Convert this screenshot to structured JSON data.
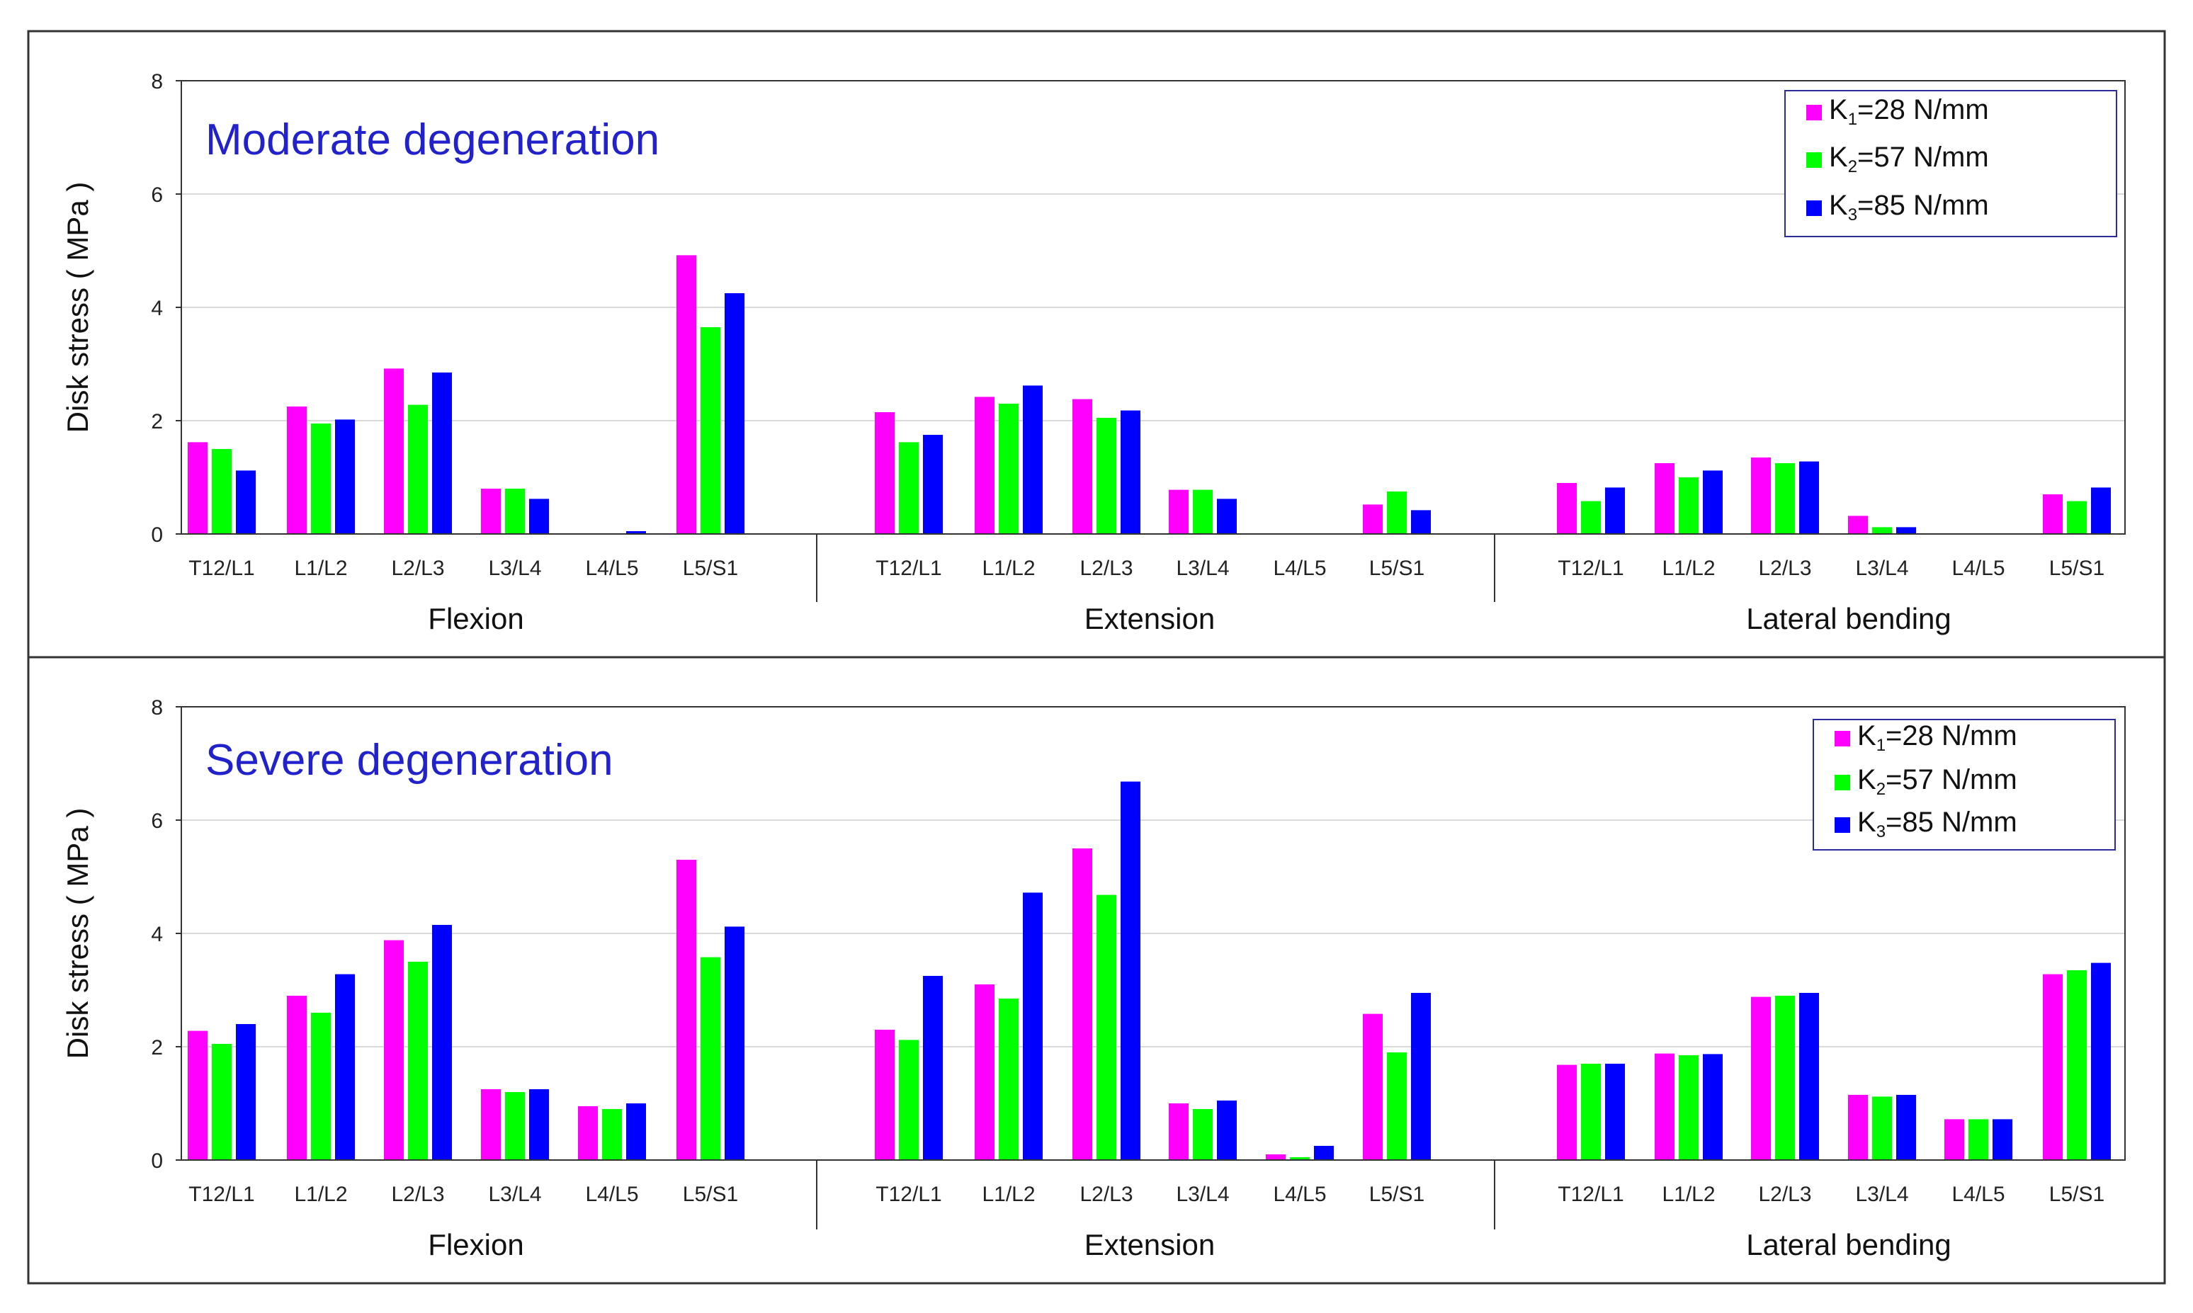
{
  "chart_data": [
    {
      "type": "bar",
      "title": "Moderate degeneration",
      "ylabel": "Disk stress ( MPa )",
      "ylim": [
        0,
        8
      ],
      "yticks": [
        "0",
        "2",
        "4",
        "6",
        "8"
      ],
      "groups": [
        "Flexion",
        "Extension",
        "Lateral bending"
      ],
      "categories": [
        "T12/L1",
        "L1/L2",
        "L2/L3",
        "L3/L4",
        "L4/L5",
        "L5/S1"
      ],
      "legend": {
        "position": "top-right",
        "entries": [
          {
            "base": "K",
            "sub": "1",
            "rest": "=28 N/mm"
          },
          {
            "base": "K",
            "sub": "2",
            "rest": "=57 N/mm"
          },
          {
            "base": "K",
            "sub": "3",
            "rest": "=85 N/mm"
          }
        ]
      },
      "series": [
        {
          "name": "K1=28 N/mm",
          "color": "#ff00ff",
          "values": [
            [
              1.62,
              2.25,
              2.92,
              0.8,
              0.0,
              4.92
            ],
            [
              2.15,
              2.42,
              2.38,
              0.78,
              0.0,
              0.52
            ],
            [
              0.9,
              1.25,
              1.35,
              0.32,
              0.0,
              0.7
            ]
          ]
        },
        {
          "name": "K2=57 N/mm",
          "color": "#00ff00",
          "values": [
            [
              1.5,
              1.95,
              2.28,
              0.8,
              0.0,
              3.65
            ],
            [
              1.62,
              2.3,
              2.05,
              0.78,
              0.0,
              0.75
            ],
            [
              0.58,
              1.0,
              1.25,
              0.12,
              0.0,
              0.58
            ]
          ]
        },
        {
          "name": "K3=85 N/mm",
          "color": "#0000ff",
          "values": [
            [
              1.12,
              2.02,
              2.85,
              0.62,
              0.05,
              4.25
            ],
            [
              1.75,
              2.62,
              2.18,
              0.62,
              0.0,
              0.42
            ],
            [
              0.82,
              1.12,
              1.28,
              0.12,
              0.0,
              0.82
            ]
          ]
        }
      ]
    },
    {
      "type": "bar",
      "title": "Severe degeneration",
      "ylabel": "Disk stress ( MPa )",
      "ylim": [
        0,
        8
      ],
      "yticks": [
        "0",
        "2",
        "4",
        "6",
        "8"
      ],
      "groups": [
        "Flexion",
        "Extension",
        "Lateral bending"
      ],
      "categories": [
        "T12/L1",
        "L1/L2",
        "L2/L3",
        "L3/L4",
        "L4/L5",
        "L5/S1"
      ],
      "legend": {
        "position": "top-right",
        "entries": [
          {
            "base": "K",
            "sub": "1",
            "rest": "=28 N/mm"
          },
          {
            "base": "K",
            "sub": "2",
            "rest": "=57 N/mm"
          },
          {
            "base": "K",
            "sub": "3",
            "rest": "=85 N/mm"
          }
        ]
      },
      "series": [
        {
          "name": "K1=28 N/mm",
          "color": "#ff00ff",
          "values": [
            [
              2.28,
              2.9,
              3.88,
              1.25,
              0.95,
              5.3
            ],
            [
              2.3,
              3.1,
              5.5,
              1.0,
              0.1,
              2.58
            ],
            [
              1.68,
              1.88,
              2.88,
              1.15,
              0.72,
              3.28
            ]
          ]
        },
        {
          "name": "K2=57 N/mm",
          "color": "#00ff00",
          "values": [
            [
              2.05,
              2.6,
              3.5,
              1.2,
              0.9,
              3.58
            ],
            [
              2.12,
              2.85,
              4.68,
              0.9,
              0.05,
              1.9
            ],
            [
              1.7,
              1.85,
              2.9,
              1.12,
              0.72,
              3.35
            ]
          ]
        },
        {
          "name": "K3=85 N/mm",
          "color": "#0000ff",
          "values": [
            [
              2.4,
              3.28,
              4.15,
              1.25,
              1.0,
              4.12
            ],
            [
              3.25,
              4.72,
              6.68,
              1.05,
              0.25,
              2.95
            ],
            [
              1.7,
              1.87,
              2.95,
              1.15,
              0.72,
              3.48
            ]
          ]
        }
      ]
    }
  ]
}
